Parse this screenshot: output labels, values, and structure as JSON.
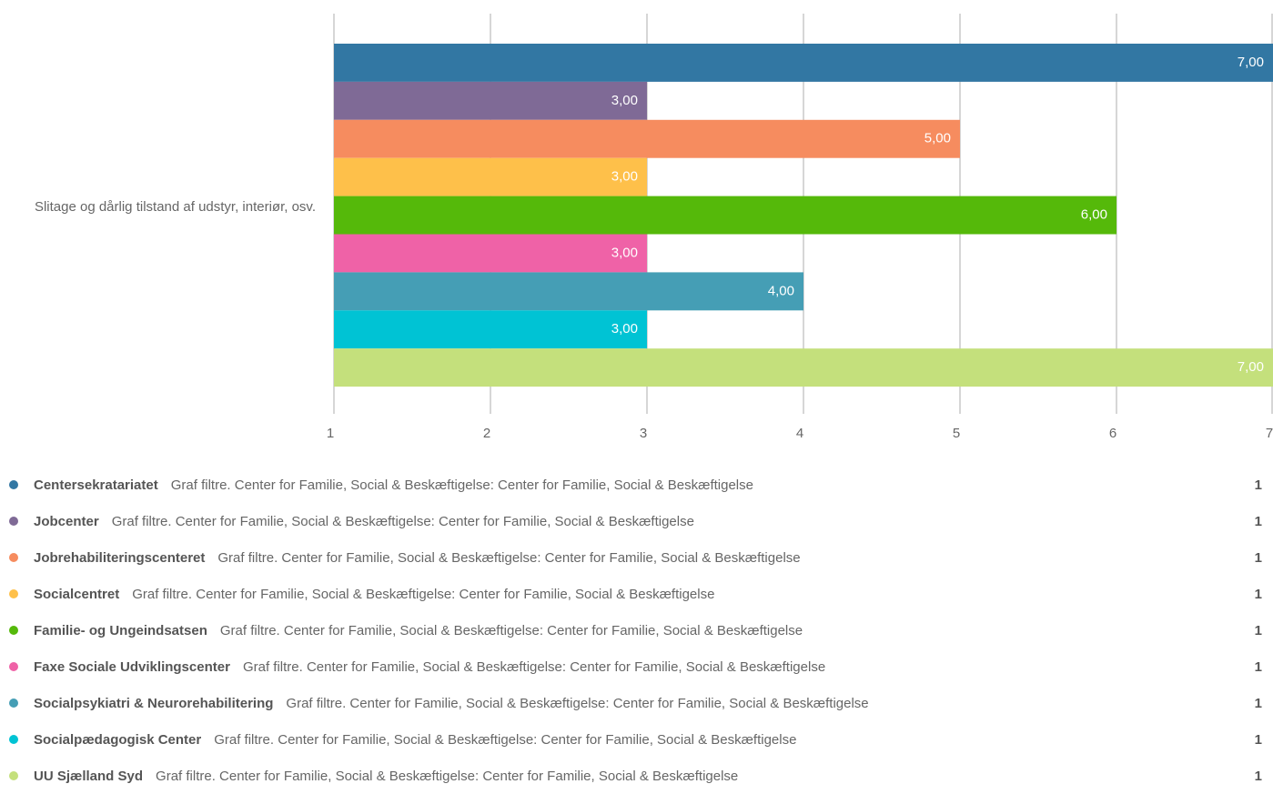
{
  "chart_data": {
    "type": "bar",
    "orientation": "horizontal",
    "categories": [
      "Slitage og dårlig tilstand af udstyr, interiør, osv."
    ],
    "xlim": [
      1,
      7
    ],
    "xticks": [
      1,
      2,
      3,
      4,
      5,
      6,
      7
    ],
    "grid": true,
    "series": [
      {
        "name": "Centersekratariatet",
        "color": "#3277a3",
        "values": [
          7
        ],
        "value_labels": [
          "7,00"
        ],
        "description": "Graf filtre. Center for Familie, Social & Beskæftigelse: Center for Familie, Social & Beskæftigelse",
        "count": 1
      },
      {
        "name": "Jobcenter",
        "color": "#7f6a96",
        "values": [
          3
        ],
        "value_labels": [
          "3,00"
        ],
        "description": "Graf filtre. Center for Familie, Social & Beskæftigelse: Center for Familie, Social & Beskæftigelse",
        "count": 1
      },
      {
        "name": "Jobrehabiliteringscenteret",
        "color": "#f68c5f",
        "values": [
          5
        ],
        "value_labels": [
          "5,00"
        ],
        "description": "Graf filtre. Center for Familie, Social & Beskæftigelse: Center for Familie, Social & Beskæftigelse",
        "count": 1
      },
      {
        "name": "Socialcentret",
        "color": "#fec04a",
        "values": [
          3
        ],
        "value_labels": [
          "3,00"
        ],
        "description": "Graf filtre. Center for Familie, Social & Beskæftigelse: Center for Familie, Social & Beskæftigelse",
        "count": 1
      },
      {
        "name": "Familie- og Ungeindsatsen",
        "color": "#55b90a",
        "values": [
          6
        ],
        "value_labels": [
          "6,00"
        ],
        "description": "Graf filtre. Center for Familie, Social & Beskæftigelse: Center for Familie, Social & Beskæftigelse",
        "count": 1
      },
      {
        "name": "Faxe Sociale Udviklingscenter",
        "color": "#ef62a7",
        "values": [
          3
        ],
        "value_labels": [
          "3,00"
        ],
        "description": "Graf filtre. Center for Familie, Social & Beskæftigelse: Center for Familie, Social & Beskæftigelse",
        "count": 1
      },
      {
        "name": "Socialpsykiatri & Neurorehabilitering",
        "color": "#459eb5",
        "values": [
          4
        ],
        "value_labels": [
          "4,00"
        ],
        "description": "Graf filtre. Center for Familie, Social & Beskæftigelse: Center for Familie, Social & Beskæftigelse",
        "count": 1
      },
      {
        "name": "Socialpædagogisk Center",
        "color": "#00c3d4",
        "values": [
          3
        ],
        "value_labels": [
          "3,00"
        ],
        "description": "Graf filtre. Center for Familie, Social & Beskæftigelse: Center for Familie, Social & Beskæftigelse",
        "count": 1
      },
      {
        "name": "UU Sjælland Syd",
        "color": "#c4e07c",
        "values": [
          7
        ],
        "value_labels": [
          "7,00"
        ],
        "description": "Graf filtre. Center for Familie, Social & Beskæftigelse: Center for Familie, Social & Beskæftigelse",
        "count": 1
      }
    ]
  }
}
